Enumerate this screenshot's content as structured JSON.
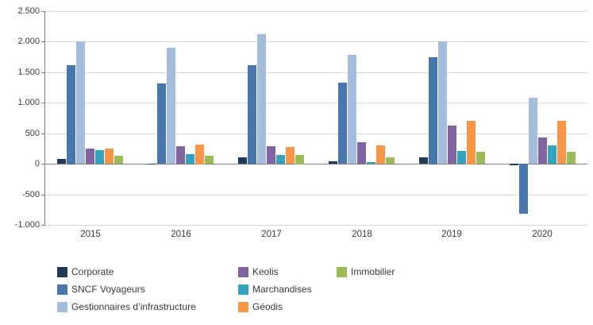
{
  "chart_data": {
    "type": "bar",
    "title": "",
    "xlabel": "",
    "ylabel": "",
    "grid": true,
    "legend_position": "bottom",
    "categories": [
      "2015",
      "2016",
      "2017",
      "2018",
      "2019",
      "2020"
    ],
    "series": [
      {
        "name": "Corporate",
        "color": "#233a5c",
        "values": [
          80,
          -15,
          100,
          40,
          110,
          -25
        ]
      },
      {
        "name": "SNCF Voyageurs",
        "color": "#4877ae",
        "values": [
          1620,
          1310,
          1620,
          1330,
          1750,
          -820
        ]
      },
      {
        "name": "Gestionnaires d’infrastructure",
        "color": "#a6bcdd",
        "values": [
          2000,
          1900,
          2120,
          1780,
          2000,
          1080
        ]
      },
      {
        "name": "Keolis",
        "color": "#8064a2",
        "values": [
          250,
          290,
          290,
          350,
          620,
          430
        ]
      },
      {
        "name": "Marchandises",
        "color": "#35a3c0",
        "values": [
          220,
          160,
          140,
          30,
          210,
          300
        ]
      },
      {
        "name": "Géodis",
        "color": "#f79646",
        "values": [
          250,
          320,
          270,
          300,
          710,
          700
        ]
      },
      {
        "name": "Immobilier",
        "color": "#9bbb59",
        "values": [
          130,
          130,
          150,
          110,
          200,
          200
        ]
      }
    ],
    "y_axis": {
      "min": -1000,
      "max": 2500,
      "step": 500,
      "tick_labels": [
        "2.500",
        "2.000",
        "1.500",
        "1.000",
        "500",
        "0",
        "-500",
        "-1.000"
      ]
    },
    "legend_columns": [
      [
        "Corporate",
        "SNCF Voyageurs",
        "Gestionnaires d’infrastructure"
      ],
      [
        "Keolis",
        "Marchandises",
        "Géodis"
      ],
      [
        "Immobilier"
      ]
    ]
  }
}
